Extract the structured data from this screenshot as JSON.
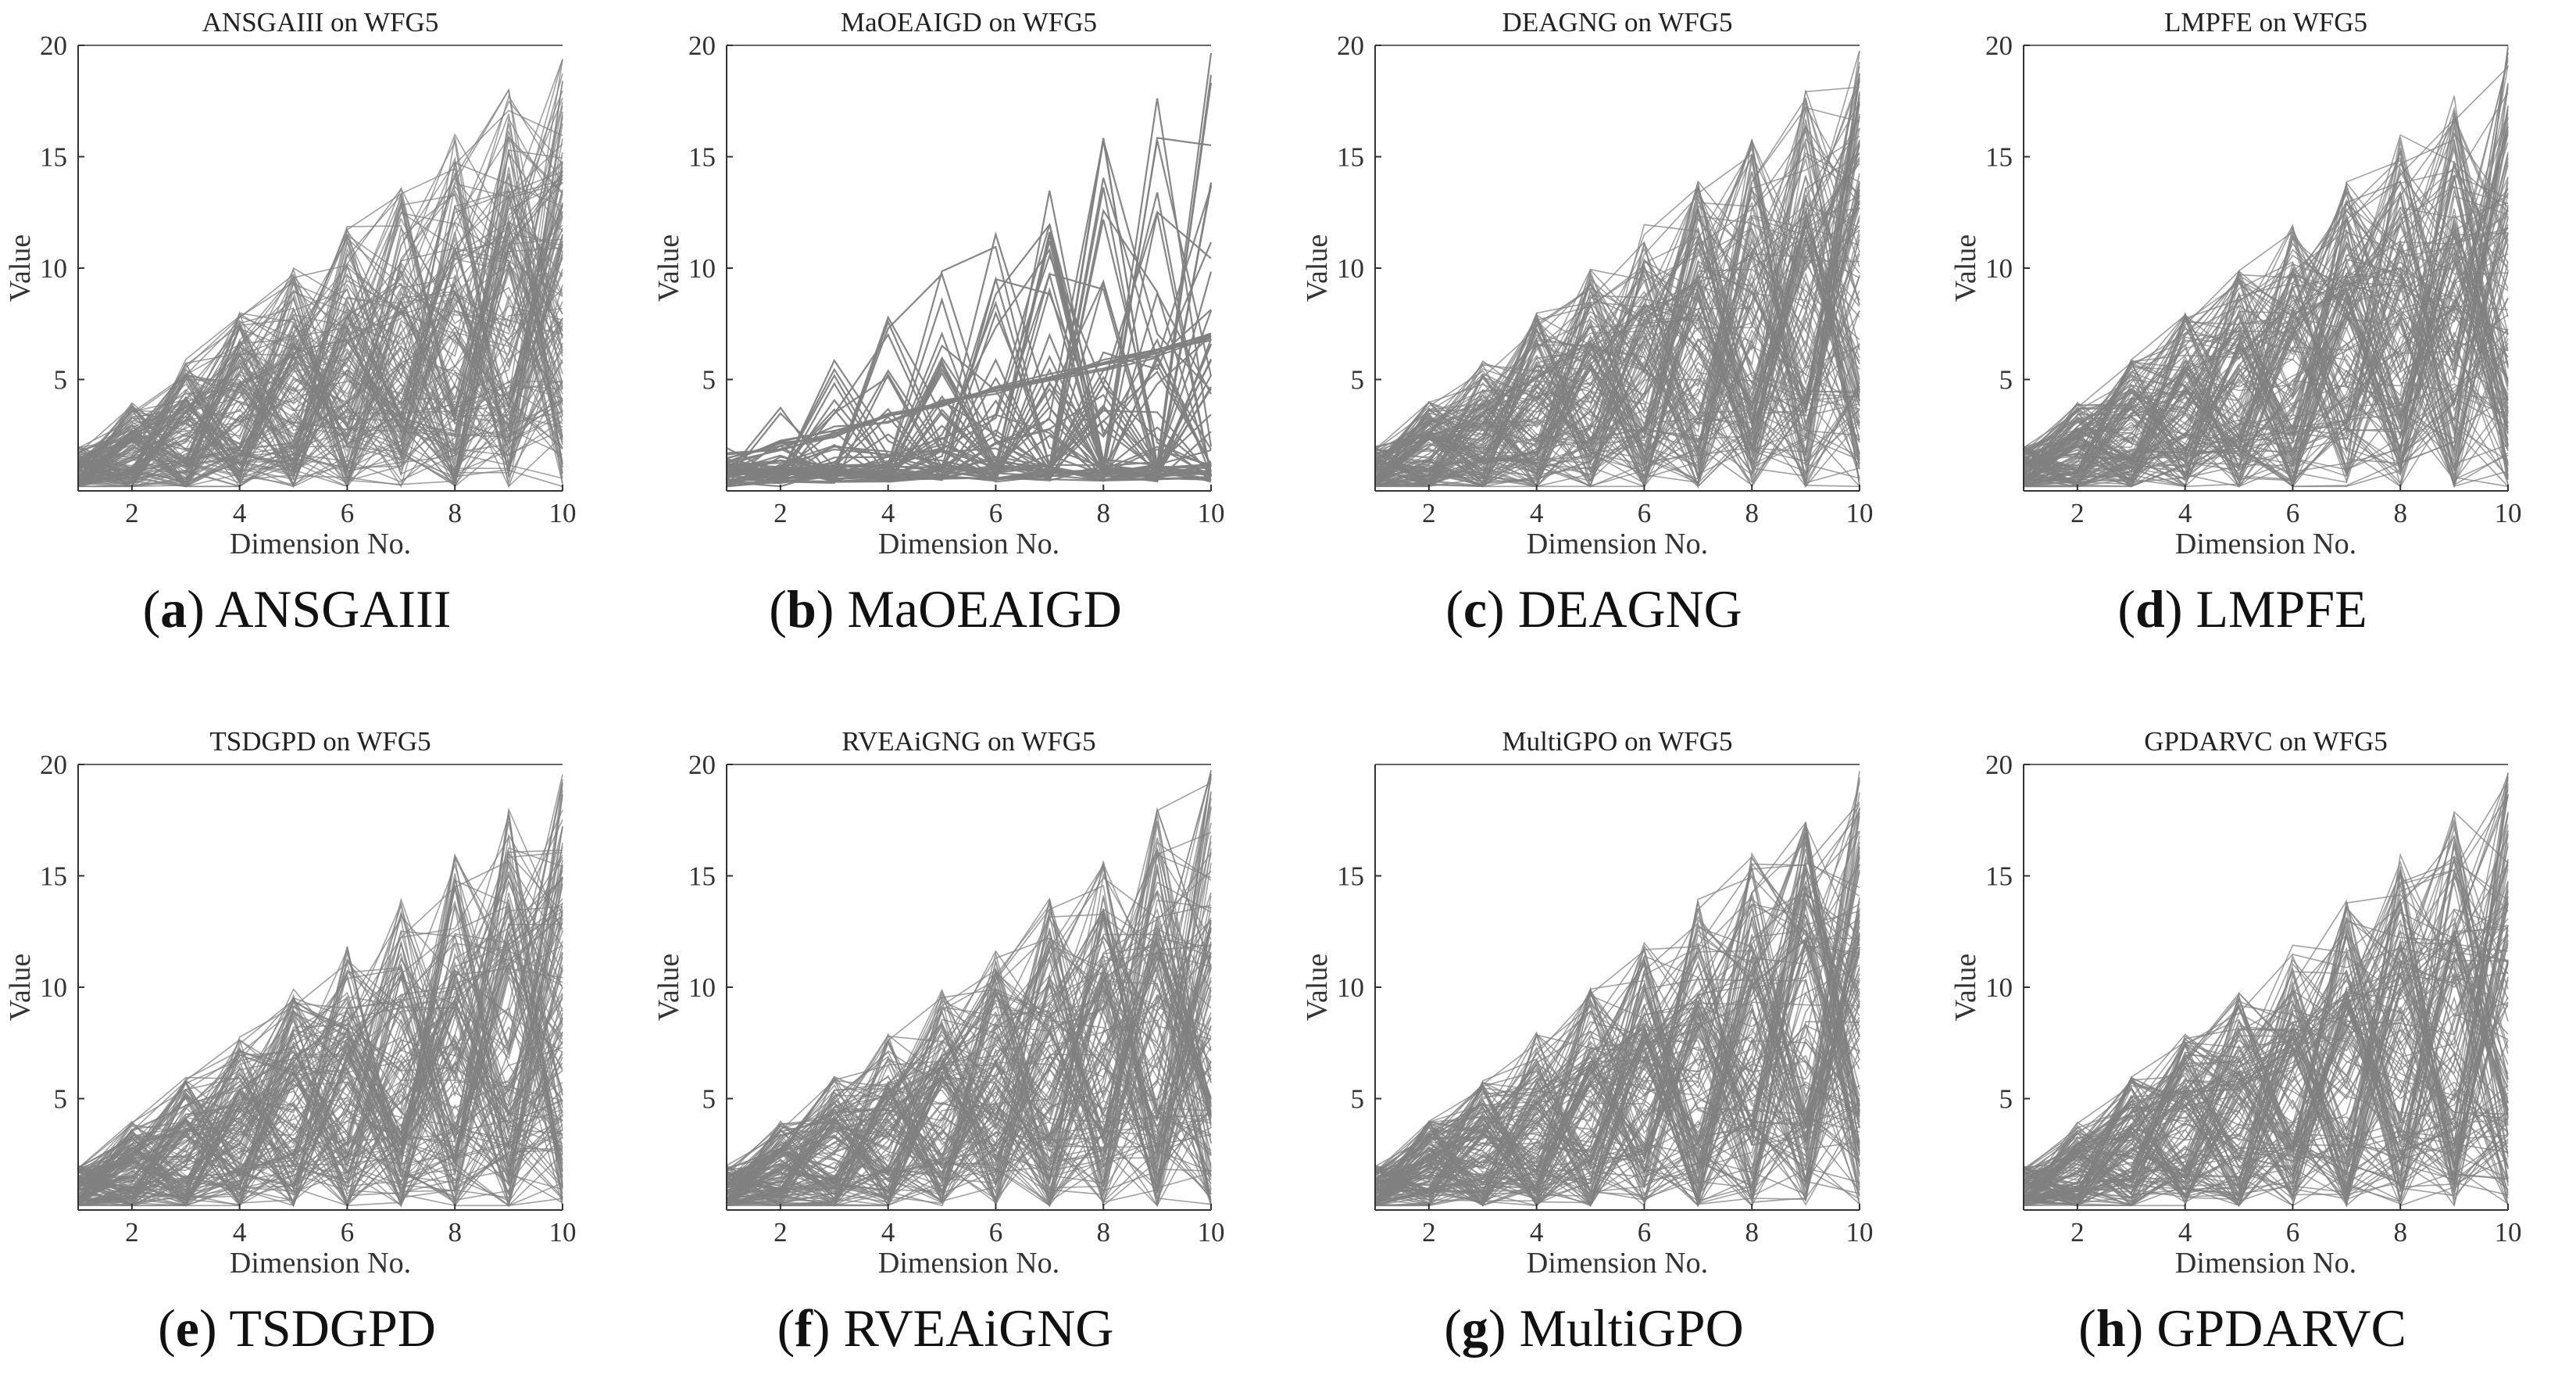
{
  "figure": {
    "line_color": "#808080",
    "axis_color": "#333333"
  },
  "chart_data": [
    {
      "id": "a",
      "algorithm": "ANSGAIII",
      "title": "ANSGAIII on WFG5",
      "type": "line",
      "subtype": "parallel-coordinates",
      "caption_letter": "a",
      "caption_name": "ANSGAIII",
      "xlabel": "Dimension No.",
      "ylabel": "Value",
      "xlim": [
        1,
        10
      ],
      "ylim": [
        0,
        20
      ],
      "xticks": [
        "2",
        "4",
        "6",
        "8",
        "10"
      ],
      "yticks": [
        "5",
        "10",
        "15",
        "20"
      ],
      "dimension_max": [
        2,
        4,
        6,
        8,
        10,
        12,
        14,
        16,
        18,
        20
      ]
    },
    {
      "id": "b",
      "algorithm": "MaOEAIGD",
      "title": "MaOEAIGD on WFG5",
      "type": "line",
      "subtype": "parallel-coordinates",
      "caption_letter": "b",
      "caption_name": "MaOEAIGD",
      "xlabel": "Dimension No.",
      "ylabel": "Value",
      "xlim": [
        1,
        10
      ],
      "ylim": [
        0,
        20
      ],
      "xticks": [
        "2",
        "4",
        "6",
        "8",
        "10"
      ],
      "yticks": [
        "5",
        "10",
        "15",
        "20"
      ],
      "dimension_max": [
        2,
        4,
        6,
        8,
        10,
        12,
        14,
        16,
        18,
        20
      ]
    },
    {
      "id": "c",
      "algorithm": "DEAGNG",
      "title": "DEAGNG on WFG5",
      "type": "line",
      "subtype": "parallel-coordinates",
      "caption_letter": "c",
      "caption_name": "DEAGNG",
      "xlabel": "Dimension No.",
      "ylabel": "Value",
      "xlim": [
        1,
        10
      ],
      "ylim": [
        0,
        20
      ],
      "xticks": [
        "2",
        "4",
        "6",
        "8",
        "10"
      ],
      "yticks": [
        "5",
        "10",
        "15",
        "20"
      ],
      "dimension_max": [
        2,
        4,
        6,
        8,
        10,
        12,
        14,
        16,
        18,
        20
      ]
    },
    {
      "id": "d",
      "algorithm": "LMPFE",
      "title": "LMPFE on WFG5",
      "type": "line",
      "subtype": "parallel-coordinates",
      "caption_letter": "d",
      "caption_name": "LMPFE",
      "xlabel": "Dimension No.",
      "ylabel": "Value",
      "xlim": [
        1,
        10
      ],
      "ylim": [
        0,
        20
      ],
      "xticks": [
        "2",
        "4",
        "6",
        "8",
        "10"
      ],
      "yticks": [
        "5",
        "10",
        "15",
        "20"
      ],
      "dimension_max": [
        2,
        4,
        6,
        8,
        10,
        12,
        14,
        16,
        18,
        20
      ]
    },
    {
      "id": "e",
      "algorithm": "TSDGPD",
      "title": "TSDGPD on WFG5",
      "type": "line",
      "subtype": "parallel-coordinates",
      "caption_letter": "e",
      "caption_name": "TSDGPD",
      "xlabel": "Dimension No.",
      "ylabel": "Value",
      "xlim": [
        1,
        10
      ],
      "ylim": [
        0,
        20
      ],
      "xticks": [
        "2",
        "4",
        "6",
        "8",
        "10"
      ],
      "yticks": [
        "5",
        "10",
        "15",
        "20"
      ],
      "dimension_max": [
        2,
        4,
        6,
        8,
        10,
        12,
        14,
        16,
        18,
        20
      ]
    },
    {
      "id": "f",
      "algorithm": "RVEAiGNG",
      "title": "RVEAiGNG on WFG5",
      "type": "line",
      "subtype": "parallel-coordinates",
      "caption_letter": "f",
      "caption_name": "RVEAiGNG",
      "xlabel": "Dimension No.",
      "ylabel": "Value",
      "xlim": [
        1,
        10
      ],
      "ylim": [
        0,
        20
      ],
      "xticks": [
        "2",
        "4",
        "6",
        "8",
        "10"
      ],
      "yticks": [
        "5",
        "10",
        "15",
        "20"
      ],
      "dimension_max": [
        2,
        4,
        6,
        8,
        10,
        12,
        14,
        16,
        18,
        20
      ]
    },
    {
      "id": "g",
      "algorithm": "MultiGPO",
      "title": "MultiGPO on WFG5",
      "type": "line",
      "subtype": "parallel-coordinates",
      "caption_letter": "g",
      "caption_name": "MultiGPO",
      "xlabel": "Dimension No.",
      "ylabel": "Value",
      "xlim": [
        1,
        10
      ],
      "ylim": [
        0,
        20
      ],
      "xticks": [
        "2",
        "4",
        "6",
        "8",
        "10"
      ],
      "yticks": [
        "5",
        "10",
        "15"
      ],
      "dimension_max": [
        2,
        4,
        6,
        8,
        10,
        12,
        14,
        16,
        18,
        20
      ]
    },
    {
      "id": "h",
      "algorithm": "GPDARVC",
      "title": "GPDARVC on WFG5",
      "type": "line",
      "subtype": "parallel-coordinates",
      "caption_letter": "h",
      "caption_name": "GPDARVC",
      "xlabel": "Dimension No.",
      "ylabel": "Value",
      "xlim": [
        1,
        10
      ],
      "ylim": [
        0,
        20
      ],
      "xticks": [
        "2",
        "4",
        "6",
        "8",
        "10"
      ],
      "yticks": [
        "5",
        "10",
        "15",
        "20"
      ],
      "dimension_max": [
        2,
        4,
        6,
        8,
        10,
        12,
        14,
        16,
        18,
        20
      ]
    }
  ]
}
